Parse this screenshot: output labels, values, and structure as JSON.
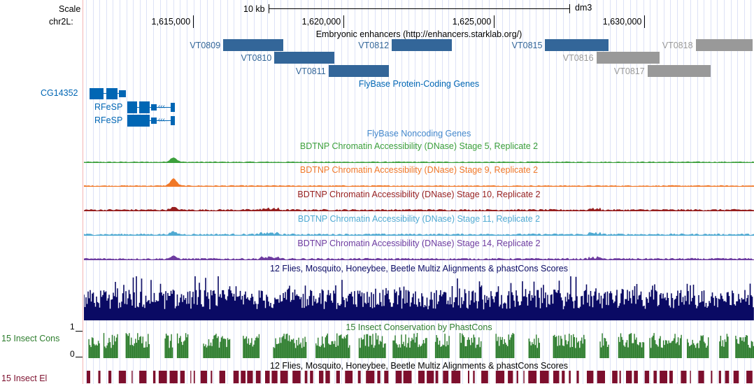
{
  "ruler": {
    "scale_label": "Scale",
    "chrom_label": "chr2L:",
    "scale_bar_text": "10 kb",
    "assembly": "dm3",
    "positions": [
      {
        "pos": 1615000,
        "label": "1,615,000"
      },
      {
        "pos": 1620000,
        "label": "1,620,000"
      },
      {
        "pos": 1625000,
        "label": "1,625,000"
      },
      {
        "pos": 1630000,
        "label": "1,630,000"
      }
    ]
  },
  "tracks": {
    "enhancers": {
      "title": "Embryonic enhancers (http://enhancers.starklab.org/)",
      "items": [
        {
          "name": "VT0809",
          "start": 1616000,
          "end": 1618000,
          "row": 0,
          "color": "#336699"
        },
        {
          "name": "VT0810",
          "start": 1617700,
          "end": 1619700,
          "row": 1,
          "color": "#336699"
        },
        {
          "name": "VT0811",
          "start": 1619500,
          "end": 1621500,
          "row": 2,
          "color": "#336699"
        },
        {
          "name": "VT0812",
          "start": 1621600,
          "end": 1623600,
          "row": 0,
          "color": "#336699"
        },
        {
          "name": "VT0815",
          "start": 1626700,
          "end": 1628800,
          "row": 0,
          "color": "#336699"
        },
        {
          "name": "VT0816",
          "start": 1628400,
          "end": 1630500,
          "row": 1,
          "color": "#999999"
        },
        {
          "name": "VT0817",
          "start": 1630100,
          "end": 1632200,
          "row": 2,
          "color": "#999999"
        },
        {
          "name": "VT0818",
          "start": 1631700,
          "end": 1633600,
          "row": 0,
          "color": "#999999"
        }
      ]
    },
    "coding_genes": {
      "title": "FlyBase Protein-Coding Genes",
      "side_label": "CG14352",
      "genes": [
        {
          "name": "CG14352",
          "row": 0
        },
        {
          "name": "RFeSP",
          "row": 1
        },
        {
          "name": "RFeSP",
          "row": 2
        }
      ],
      "color": "#0066b4"
    },
    "noncoding": {
      "title": "FlyBase Noncoding Genes",
      "color": "#4488cc"
    },
    "dnase": [
      {
        "title": "BDTNP Chromatin Accessibility (DNase) Stage 5, Replicate 2",
        "color": "#3ca03c",
        "peak": 0.55
      },
      {
        "title": "BDTNP Chromatin Accessibility (DNase) Stage 9, Replicate 2",
        "color": "#f07828",
        "peak": 0.85
      },
      {
        "title": "BDTNP Chromatin Accessibility (DNase) Stage 10, Replicate 2",
        "color": "#961e1e",
        "peak": 0.3
      },
      {
        "title": "BDTNP Chromatin Accessibility (DNase) Stage 11, Replicate 2",
        "color": "#50aad2",
        "peak": 0.3
      },
      {
        "title": "BDTNP Chromatin Accessibility (DNase) Stage 14, Replicate 2",
        "color": "#6e3ca0",
        "peak": 0.3
      }
    ],
    "multiz": {
      "title": "12 Flies, Mosquito, Honeybee, Beetle Multiz Alignments & phastCons Scores",
      "color": "#0a0a64"
    },
    "insect_cons": {
      "title": "15 Insect Conservation by PhastCons",
      "side_label": "15 Insect Cons",
      "axis_max": "1",
      "axis_min": "0",
      "color": "#2d7d2d"
    },
    "insect_el": {
      "title": "12 Flies, Mosquito, Honeybee, Beetle Multiz Alignments & phastCons Scores",
      "side_label": "15 Insect El",
      "color": "#7d0f2d"
    }
  }
}
